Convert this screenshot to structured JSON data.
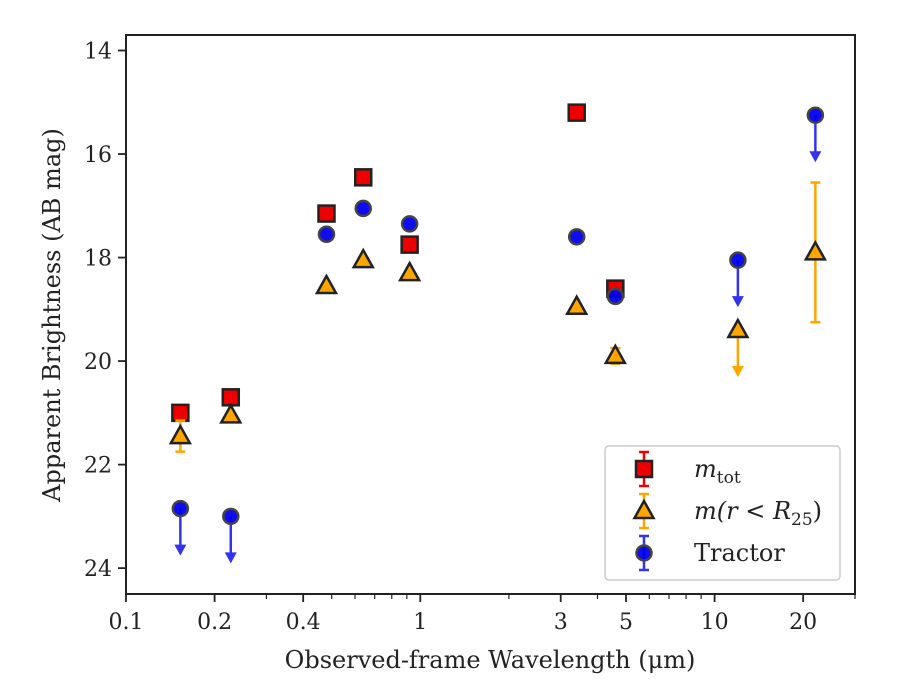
{
  "chart_data": {
    "type": "scatter",
    "xlabel": "Observed-frame Wavelength (μm)",
    "ylabel": "Apparent Brightness (AB mag)",
    "x_scale": "log",
    "xlim": [
      0.1,
      30
    ],
    "ylim": [
      24.5,
      13.7
    ],
    "y_inverted": true,
    "x_ticks": [
      {
        "value": 0.1,
        "label": "0.1"
      },
      {
        "value": 0.2,
        "label": "0.2"
      },
      {
        "value": 0.4,
        "label": "0.4"
      },
      {
        "value": 1,
        "label": "1"
      },
      {
        "value": 3,
        "label": "3"
      },
      {
        "value": 5,
        "label": "5"
      },
      {
        "value": 10,
        "label": "10"
      },
      {
        "value": 20,
        "label": "20"
      }
    ],
    "y_ticks": [
      {
        "value": 14,
        "label": "14"
      },
      {
        "value": 16,
        "label": "16"
      },
      {
        "value": 18,
        "label": "18"
      },
      {
        "value": 20,
        "label": "20"
      },
      {
        "value": 22,
        "label": "22"
      },
      {
        "value": 24,
        "label": "24"
      }
    ],
    "grid": false,
    "legend_position": "bottom-right",
    "series": [
      {
        "name_main": "m",
        "name_sub": "tot",
        "marker": "square",
        "color": "#ee0000",
        "edge_color": "#222222",
        "points": [
          {
            "x": 0.153,
            "y": 21.0
          },
          {
            "x": 0.227,
            "y": 20.7
          },
          {
            "x": 0.48,
            "y": 17.15
          },
          {
            "x": 0.64,
            "y": 16.45
          },
          {
            "x": 0.92,
            "y": 17.75
          },
          {
            "x": 3.4,
            "y": 15.2
          },
          {
            "x": 4.6,
            "y": 18.6
          }
        ]
      },
      {
        "name_main": "m(r < R",
        "name_sub": "25",
        "name_tail": ")",
        "marker": "triangle",
        "color": "#ffa500",
        "edge_color": "#222222",
        "points": [
          {
            "x": 0.153,
            "y": 21.45,
            "err": 0.3
          },
          {
            "x": 0.227,
            "y": 21.05
          },
          {
            "x": 0.48,
            "y": 18.55
          },
          {
            "x": 0.64,
            "y": 18.05
          },
          {
            "x": 0.92,
            "y": 18.3
          },
          {
            "x": 3.4,
            "y": 18.95
          },
          {
            "x": 4.6,
            "y": 19.9,
            "err": 0.15
          },
          {
            "x": 12.0,
            "y": 19.4,
            "upper_limit": true
          },
          {
            "x": 22.0,
            "y": 17.9,
            "err": 1.35
          }
        ]
      },
      {
        "name_main": "Tractor",
        "marker": "circle",
        "color": "#0000ee",
        "edge_color": "#444444",
        "points": [
          {
            "x": 0.153,
            "y": 22.85,
            "upper_limit": true
          },
          {
            "x": 0.227,
            "y": 23.0,
            "upper_limit": true
          },
          {
            "x": 0.48,
            "y": 17.55
          },
          {
            "x": 0.64,
            "y": 17.05
          },
          {
            "x": 0.92,
            "y": 17.35
          },
          {
            "x": 3.4,
            "y": 17.6
          },
          {
            "x": 4.6,
            "y": 18.75
          },
          {
            "x": 12.0,
            "y": 18.05,
            "upper_limit": true
          },
          {
            "x": 22.0,
            "y": 15.25,
            "upper_limit": true
          }
        ]
      }
    ]
  }
}
